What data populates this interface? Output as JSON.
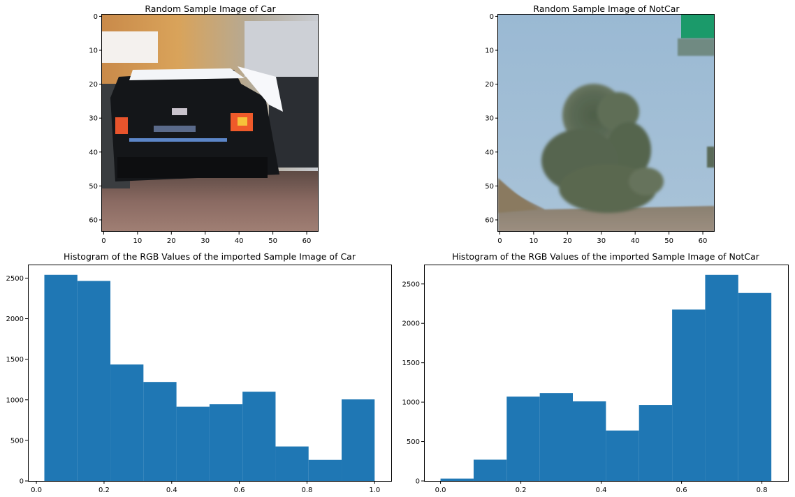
{
  "chart_data": [
    {
      "type": "image",
      "title": "Random Sample Image of Car",
      "xticks": [
        0,
        10,
        20,
        30,
        40,
        50,
        60
      ],
      "yticks": [
        0,
        10,
        20,
        30,
        40,
        50,
        60
      ],
      "xlim": [
        -0.5,
        63.5
      ],
      "ylim": [
        63.5,
        -0.5
      ],
      "image_content": "black car rear view on road"
    },
    {
      "type": "image",
      "title": "Random Sample Image of NotCar",
      "xticks": [
        0,
        10,
        20,
        30,
        40,
        50,
        60
      ],
      "yticks": [
        0,
        10,
        20,
        30,
        40,
        50,
        60
      ],
      "xlim": [
        -0.5,
        63.5
      ],
      "ylim": [
        63.5,
        -0.5
      ],
      "image_content": "tree against blue sky with green road sign"
    },
    {
      "type": "bar",
      "title": "Histogram of the RGB Values of the imported Sample Image of Car",
      "bin_edges": [
        0.0235,
        0.1212,
        0.2188,
        0.3165,
        0.4141,
        0.5118,
        0.6094,
        0.7071,
        0.8047,
        0.9024,
        1.0
      ],
      "values": [
        2540,
        2465,
        1435,
        1220,
        915,
        945,
        1100,
        425,
        260,
        1005
      ],
      "xticks": [
        0.0,
        0.2,
        0.4,
        0.6,
        0.8,
        1.0
      ],
      "xtick_labels": [
        "0.0",
        "0.2",
        "0.4",
        "0.6",
        "0.8",
        "1.0"
      ],
      "yticks": [
        0,
        500,
        1000,
        1500,
        2000,
        2500
      ],
      "xlim": [
        -0.025,
        1.049
      ],
      "ylim": [
        0,
        2667
      ],
      "color": "#1f77b4"
    },
    {
      "type": "bar",
      "title": "Histogram of the RGB Values of the imported Sample Image of NotCar",
      "bin_edges": [
        0.0,
        0.0824,
        0.1647,
        0.2471,
        0.3294,
        0.4118,
        0.4941,
        0.5765,
        0.6588,
        0.7412,
        0.8235
      ],
      "values": [
        30,
        270,
        1070,
        1115,
        1010,
        640,
        965,
        2175,
        2615,
        2385
      ],
      "xticks": [
        0.0,
        0.2,
        0.4,
        0.6,
        0.8
      ],
      "xtick_labels": [
        "0.0",
        "0.2",
        "0.4",
        "0.6",
        "0.8"
      ],
      "yticks": [
        0,
        500,
        1000,
        1500,
        2000,
        2500
      ],
      "xlim": [
        -0.041,
        0.865
      ],
      "ylim": [
        0,
        2746
      ],
      "color": "#1f77b4"
    }
  ]
}
